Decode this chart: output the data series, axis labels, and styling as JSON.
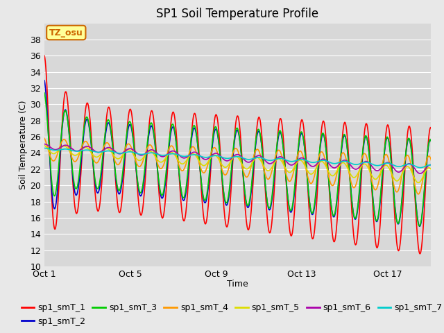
{
  "title": "SP1 Soil Temperature Profile",
  "xlabel": "Time",
  "ylabel": "Soil Temperature (C)",
  "annotation": "TZ_osu",
  "series_names": [
    "sp1_smT_1",
    "sp1_smT_2",
    "sp1_smT_3",
    "sp1_smT_4",
    "sp1_smT_5",
    "sp1_smT_6",
    "sp1_smT_7"
  ],
  "colors": [
    "#ff0000",
    "#0000cc",
    "#00cc00",
    "#ff9900",
    "#dddd00",
    "#aa00aa",
    "#00cccc"
  ],
  "ylim": [
    10,
    40
  ],
  "yticks": [
    10,
    12,
    14,
    16,
    18,
    20,
    22,
    24,
    26,
    28,
    30,
    32,
    34,
    36,
    38
  ],
  "xtick_labels": [
    "Oct 1",
    "Oct 5",
    "Oct 9",
    "Oct 13",
    "Oct 17"
  ],
  "xtick_positions": [
    0,
    4,
    8,
    12,
    16
  ],
  "n_days": 19,
  "n_pts_per_day": 48,
  "bg_color": "#e8e8e8",
  "plot_bg_color": "#d8d8d8",
  "grid_color": "#ffffff",
  "title_fontsize": 12,
  "axis_label_fontsize": 9,
  "tick_fontsize": 9,
  "legend_fontsize": 9,
  "linewidth": 1.2
}
